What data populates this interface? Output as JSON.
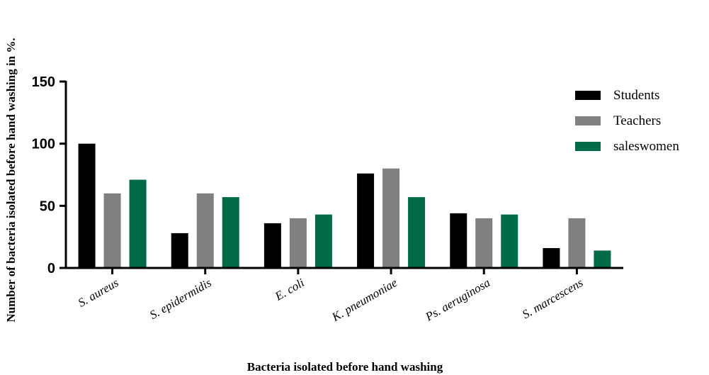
{
  "chart_data": {
    "type": "bar",
    "categories": [
      "S. aureus",
      "S. epidermidis",
      "E. coli",
      "K. pneumoniae",
      "Ps. aeruginosa",
      "S. marcescens"
    ],
    "series": [
      {
        "name": "Students",
        "values": [
          100,
          28,
          36,
          76,
          44,
          16
        ],
        "color": "#000000"
      },
      {
        "name": "Teachers",
        "values": [
          60,
          60,
          40,
          80,
          40,
          40
        ],
        "color": "#808080"
      },
      {
        "name": "saleswomen",
        "values": [
          71,
          57,
          43,
          57,
          43,
          14
        ],
        "color": "#006b45"
      }
    ],
    "xlabel": "Bacteria isolated before hand washing",
    "ylabel": "Number of bacteria isolated before hand washing in %.",
    "ylim": [
      0,
      150
    ],
    "yticks": [
      "0",
      "50",
      "100",
      "150"
    ],
    "grid": false,
    "legend_position": "top-right"
  }
}
